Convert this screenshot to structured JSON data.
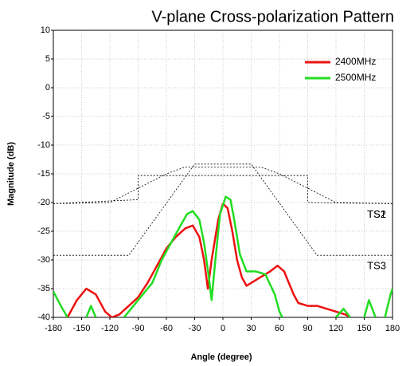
{
  "chart_data": {
    "type": "line",
    "title": "V-plane Cross-polarization Pattern",
    "xlabel": "Angle (degree)",
    "ylabel": "Magnitude (dB)",
    "xlim": [
      -180,
      180
    ],
    "xticks": [
      -180,
      -150,
      -120,
      -90,
      -60,
      -30,
      0,
      30,
      60,
      90,
      120,
      150,
      180
    ],
    "ylim": [
      -40,
      10
    ],
    "yticks": [
      -40,
      -35,
      -30,
      -25,
      -20,
      -15,
      -10,
      -5,
      0,
      5,
      10
    ],
    "grid": true,
    "legend": "upper right",
    "series": [
      {
        "name": "2400MHz",
        "color": "#ee1111",
        "x": [
          -165,
          -155,
          -145,
          -135,
          -125,
          -118,
          -110,
          -100,
          -90,
          -80,
          -70,
          -60,
          -50,
          -40,
          -32,
          -25,
          -20,
          -16,
          -12,
          -5,
          0,
          5,
          10,
          15,
          20,
          25,
          30,
          40,
          50,
          58,
          65,
          70,
          75,
          80,
          90,
          100,
          110,
          120,
          130,
          135
        ],
        "values": [
          -40,
          -37,
          -35,
          -36,
          -39,
          -40,
          -39.5,
          -38,
          -36.5,
          -34,
          -31,
          -28,
          -26,
          -24.5,
          -24,
          -26,
          -30,
          -35,
          -30,
          -23,
          -20.2,
          -21,
          -25,
          -30,
          -33,
          -34.5,
          -34,
          -33,
          -32,
          -31,
          -32,
          -34,
          -36,
          -37.5,
          -38,
          -38,
          -38.5,
          -39,
          -39.5,
          -40
        ]
      },
      {
        "name": "2500MHz",
        "color": "#22dd22",
        "x": [
          -180,
          -172,
          -165,
          -160,
          -145,
          -140,
          -135,
          -120,
          -105,
          -95,
          -85,
          -75,
          -65,
          -55,
          -45,
          -38,
          -32,
          -25,
          -20,
          -15,
          -12,
          -8,
          -3,
          3,
          8,
          12,
          18,
          25,
          35,
          45,
          55,
          60,
          63,
          100,
          120,
          128,
          135,
          142,
          150,
          155,
          162,
          167,
          172,
          178,
          180
        ],
        "values": [
          -35.5,
          -38,
          -40,
          null,
          -40,
          -38,
          -40,
          null,
          -40,
          -38,
          -36,
          -34,
          -30,
          -27,
          -24,
          -22,
          -21.5,
          -23,
          -27,
          -33,
          -37,
          -30,
          -22,
          -19,
          -19.5,
          -23,
          -29,
          -32,
          -32,
          -32.5,
          -36,
          -39,
          -40,
          null,
          -40,
          -38.5,
          -40,
          null,
          -40,
          -37,
          -40,
          null,
          -40,
          -36,
          -35
        ]
      }
    ],
    "masks": [
      {
        "name": "TS1",
        "x": [
          -180,
          -90,
          -90,
          90,
          90,
          180
        ],
        "values": [
          -20.2,
          -19.5,
          -15.3,
          -15.3,
          -20,
          -20.2
        ]
      },
      {
        "name": "TS2",
        "x": [
          -180,
          -120,
          -60,
          -40,
          40,
          60,
          120,
          180
        ],
        "values": [
          -20.2,
          -20,
          -15,
          -13.8,
          -13.8,
          -15,
          -20,
          -20.2
        ]
      },
      {
        "name": "TS3",
        "x": [
          -180,
          -100,
          -30,
          30,
          100,
          180
        ],
        "values": [
          -29.2,
          -29.2,
          -13.3,
          -13.3,
          -29.2,
          -29.2
        ]
      }
    ]
  }
}
